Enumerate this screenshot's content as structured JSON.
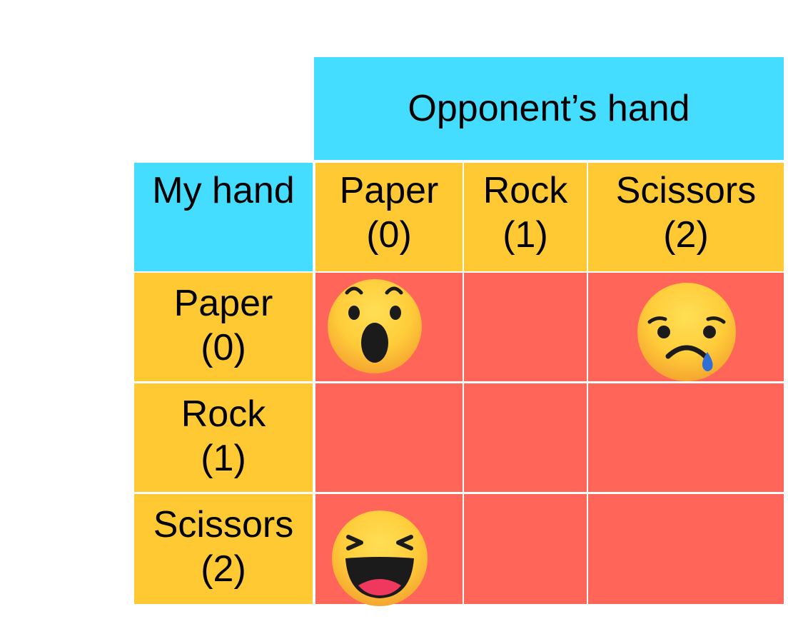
{
  "header": {
    "opponent_title": "Opponent’s hand",
    "my_hand_title": "My hand"
  },
  "columns": [
    {
      "name": "Paper",
      "index": "(0)"
    },
    {
      "name": "Rock",
      "index": "(1)"
    },
    {
      "name": "Scissors",
      "index": "(2)"
    }
  ],
  "rows": [
    {
      "name": "Paper",
      "index": "(0)"
    },
    {
      "name": "Rock",
      "index": "(1)"
    },
    {
      "name": "Scissors",
      "index": "(2)"
    }
  ],
  "outcomes": [
    {
      "row": "Paper",
      "col": "Paper",
      "icon": "surprised-face-icon"
    },
    {
      "row": "Paper",
      "col": "Scissors",
      "icon": "sad-face-icon"
    },
    {
      "row": "Scissors",
      "col": "Paper",
      "icon": "laughing-face-icon"
    }
  ],
  "colors": {
    "header_blue": "#44dcff",
    "label_yellow": "#ffc933",
    "cell_red": "#ff6559",
    "emoji_yellow": "#ffd23f",
    "emoji_orange": "#f7a531"
  }
}
